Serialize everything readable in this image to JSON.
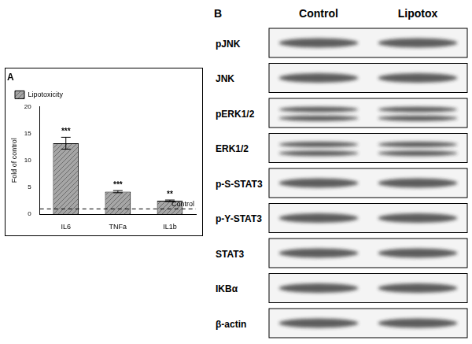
{
  "chart_data": {
    "type": "bar",
    "panel_label": "A",
    "categories": [
      "IL6",
      "TNFa",
      "IL1b"
    ],
    "series": [
      {
        "name": "Lipotoxicity",
        "color": "#a6a6a6",
        "values": [
          13.2,
          4.2,
          2.5
        ],
        "errors": [
          1.1,
          0.2,
          0.15
        ]
      }
    ],
    "significance": [
      "***",
      "***",
      "**"
    ],
    "annotations": [
      {
        "text": "Control",
        "y": 1
      }
    ],
    "y_label": "Fold of control",
    "ylim": [
      0,
      20
    ],
    "yticks": [
      0,
      5,
      10,
      15,
      20
    ],
    "grid": false,
    "legend": "top-left"
  },
  "blot": {
    "panel_label": "B",
    "lanes": [
      "Control",
      "Lipotox"
    ],
    "rows": [
      "pJNK",
      "JNK",
      "pERK1/2",
      "ERK1/2",
      "p-S-STAT3",
      "p-Y-STAT3",
      "STAT3",
      "IKBα",
      "β-actin"
    ]
  }
}
